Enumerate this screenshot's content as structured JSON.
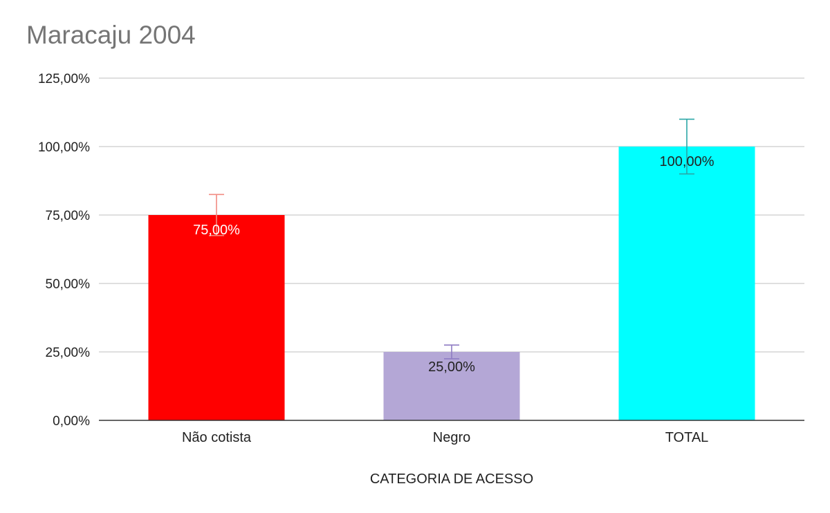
{
  "chart_data": {
    "type": "bar",
    "title": "Maracaju 2004",
    "xlabel": "CATEGORIA DE ACESSO",
    "ylabel": "",
    "categories": [
      "Não cotista",
      "Negro",
      "TOTAL"
    ],
    "values": [
      75,
      25,
      100
    ],
    "value_labels": [
      "75,00%",
      "25,00%",
      "100,00%"
    ],
    "error_bars": [
      7.5,
      2.5,
      10
    ],
    "colors": [
      "#ff0000",
      "#b4a7d6",
      "#00ffff"
    ],
    "error_bar_colors": [
      "#f28b82",
      "#8e7cc3",
      "#2aa6a6"
    ],
    "label_colors": [
      "#ffffff",
      "#222222",
      "#222222"
    ],
    "ylim": [
      0,
      125
    ],
    "yticks": [
      0,
      25,
      50,
      75,
      100,
      125
    ],
    "ytick_labels": [
      "0,00%",
      "25,00%",
      "50,00%",
      "75,00%",
      "100,00%",
      "125,00%"
    ],
    "grid": true,
    "legend": "none"
  }
}
